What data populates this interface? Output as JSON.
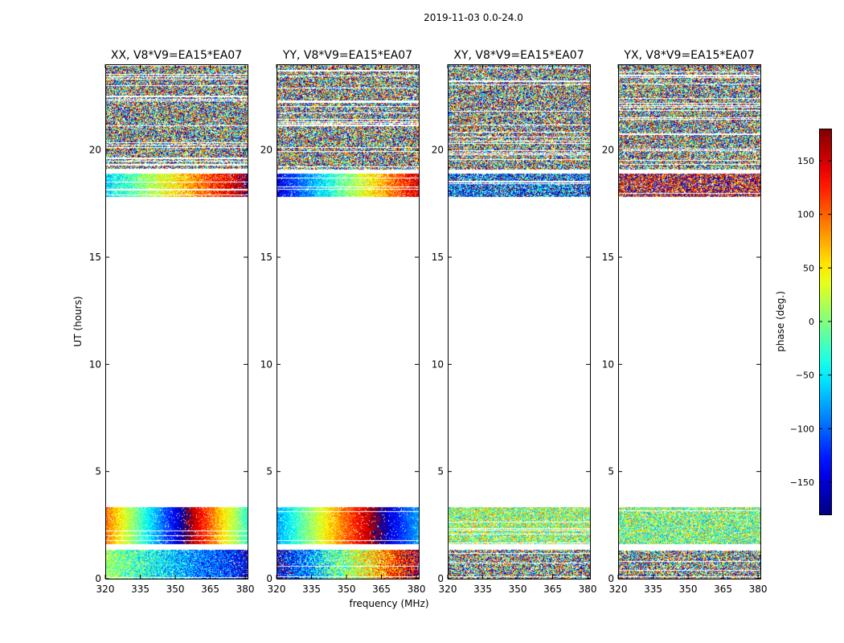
{
  "figure": {
    "title": "2019-11-03 0.0-24.0",
    "xlabel": "frequency (MHz)",
    "ylabel": "UT (hours)",
    "colorbar_label": "phase (deg.)",
    "colormap": "jet",
    "background": "#ffffff"
  },
  "chart_data": {
    "type": "heatmap",
    "title": "2019-11-03 0.0-24.0",
    "xlabel": "frequency (MHz)",
    "ylabel": "UT (hours)",
    "xlim": [
      320,
      381
    ],
    "ylim": [
      0,
      24
    ],
    "xticks": [
      320,
      335,
      350,
      365,
      380
    ],
    "yticks": [
      0,
      5,
      10,
      15,
      20
    ],
    "grid": false,
    "value_label": "phase (deg.)",
    "color_range": [
      -180,
      180
    ],
    "colorbar_ticks": [
      -150,
      -100,
      -50,
      0,
      50,
      100,
      150
    ],
    "flagged_time_ranges_hours": [
      [
        3.35,
        17.8
      ],
      [
        1.35,
        1.6
      ],
      [
        0.35,
        0.5
      ],
      [
        18.9,
        19.1
      ],
      [
        22.3,
        22.5
      ]
    ],
    "panels": [
      {
        "title": "XX, V8*V9=EA15*EA07",
        "segments": [
          {
            "t": [
              0.0,
              1.35
            ],
            "kind": "noisy_gradient",
            "phase_start": 10,
            "phase_end": -140,
            "noise": 55
          },
          {
            "t": [
              1.6,
              3.35
            ],
            "kind": "phase_wrap",
            "phase_at_320": 100,
            "slope_deg_per_mhz": -8,
            "noise": 25
          },
          {
            "t": [
              17.8,
              18.9
            ],
            "kind": "gradient",
            "phase_start": -60,
            "phase_end": 170,
            "noise": 40
          },
          {
            "t": [
              19.1,
              24.0
            ],
            "kind": "noise"
          }
        ]
      },
      {
        "title": "YY, V8*V9=EA15*EA07",
        "segments": [
          {
            "t": [
              0.0,
              1.35
            ],
            "kind": "noisy_gradient",
            "phase_start": -150,
            "phase_end": 160,
            "noise": 70
          },
          {
            "t": [
              1.6,
              3.35
            ],
            "kind": "phase_wrap",
            "phase_at_320": -80,
            "slope_deg_per_mhz": 6,
            "noise": 25
          },
          {
            "t": [
              17.8,
              18.9
            ],
            "kind": "gradient",
            "phase_start": -150,
            "phase_end": 150,
            "noise": 35
          },
          {
            "t": [
              19.1,
              24.0
            ],
            "kind": "noise"
          }
        ]
      },
      {
        "title": "XY, V8*V9=EA15*EA07",
        "segments": [
          {
            "t": [
              0.0,
              1.35
            ],
            "kind": "noise"
          },
          {
            "t": [
              1.6,
              3.35
            ],
            "kind": "noisy_center",
            "center": 10,
            "noise": 90
          },
          {
            "t": [
              17.8,
              18.9
            ],
            "kind": "noisy_center",
            "center": -100,
            "noise": 110
          },
          {
            "t": [
              19.1,
              24.0
            ],
            "kind": "noise"
          }
        ]
      },
      {
        "title": "YX, V8*V9=EA15*EA07",
        "segments": [
          {
            "t": [
              0.0,
              1.35
            ],
            "kind": "noise"
          },
          {
            "t": [
              1.6,
              3.35
            ],
            "kind": "noisy_center",
            "center": 0,
            "noise": 90
          },
          {
            "t": [
              17.8,
              18.9
            ],
            "kind": "noisy_center",
            "center": 150,
            "noise": 110
          },
          {
            "t": [
              19.1,
              24.0
            ],
            "kind": "noise"
          }
        ]
      }
    ]
  }
}
